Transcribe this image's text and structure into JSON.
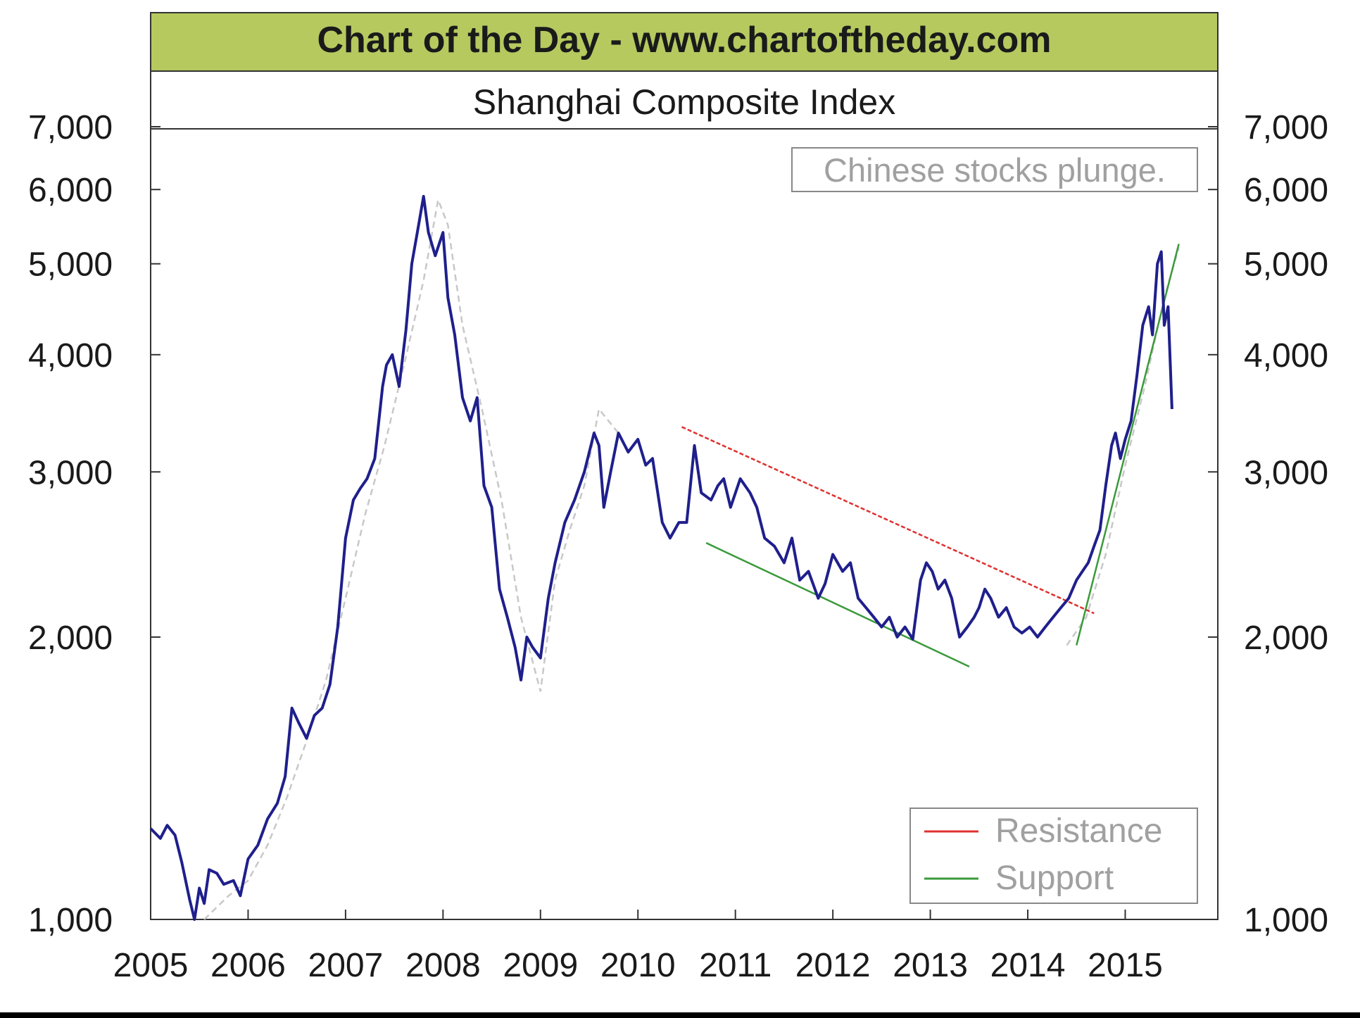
{
  "header": {
    "banner": "Chart of the Day - www.chartoftheday.com",
    "title": "Shanghai Composite Index",
    "annotation": "Chinese stocks plunge.",
    "banner_color": "#b5c95f"
  },
  "chart_data": {
    "type": "line",
    "title": "Shanghai Composite Index",
    "xlabel": "",
    "ylabel": "",
    "y_scale": "log",
    "xlim": [
      2005.0,
      2015.95
    ],
    "ylim": [
      1000,
      7000
    ],
    "x_ticks": [
      2005,
      2006,
      2007,
      2008,
      2009,
      2010,
      2011,
      2012,
      2013,
      2014,
      2015
    ],
    "x_tick_labels": [
      "2005",
      "2006",
      "2007",
      "2008",
      "2009",
      "2010",
      "2011",
      "2012",
      "2013",
      "2014",
      "2015"
    ],
    "y_ticks": [
      1000,
      2000,
      3000,
      4000,
      5000,
      6000,
      7000
    ],
    "y_tick_labels": [
      "1,000",
      "2,000",
      "3,000",
      "4,000",
      "5,000",
      "6,000",
      "7,000"
    ],
    "legend_position": "bottom-right",
    "colors": {
      "index": "#1f1f8c",
      "moving_average": "#c8c8c8",
      "resistance": "#e03030",
      "support": "#3a9a3a"
    },
    "series": [
      {
        "role": "index",
        "x": [
          2005.0,
          2005.1,
          2005.17,
          2005.25,
          2005.32,
          2005.4,
          2005.45,
          2005.5,
          2005.55,
          2005.6,
          2005.68,
          2005.75,
          2005.85,
          2005.92,
          2006.0,
          2006.1,
          2006.2,
          2006.3,
          2006.38,
          2006.45,
          2006.52,
          2006.6,
          2006.68,
          2006.76,
          2006.84,
          2006.92,
          2007.0,
          2007.08,
          2007.15,
          2007.22,
          2007.3,
          2007.38,
          2007.42,
          2007.48,
          2007.55,
          2007.62,
          2007.68,
          2007.75,
          2007.8,
          2007.85,
          2007.92,
          2008.0,
          2008.05,
          2008.12,
          2008.2,
          2008.28,
          2008.35,
          2008.42,
          2008.5,
          2008.58,
          2008.66,
          2008.74,
          2008.8,
          2008.86,
          2008.92,
          2009.0,
          2009.08,
          2009.15,
          2009.25,
          2009.35,
          2009.45,
          2009.55,
          2009.6,
          2009.65,
          2009.72,
          2009.8,
          2009.9,
          2010.0,
          2010.08,
          2010.15,
          2010.25,
          2010.33,
          2010.42,
          2010.5,
          2010.58,
          2010.65,
          2010.75,
          2010.82,
          2010.88,
          2010.95,
          2011.05,
          2011.15,
          2011.22,
          2011.3,
          2011.4,
          2011.5,
          2011.58,
          2011.66,
          2011.75,
          2011.85,
          2011.92,
          2012.0,
          2012.1,
          2012.18,
          2012.26,
          2012.34,
          2012.42,
          2012.5,
          2012.58,
          2012.66,
          2012.74,
          2012.82,
          2012.9,
          2012.96,
          2013.02,
          2013.08,
          2013.15,
          2013.22,
          2013.3,
          2013.38,
          2013.45,
          2013.5,
          2013.56,
          2013.62,
          2013.7,
          2013.78,
          2013.86,
          2013.94,
          2014.02,
          2014.1,
          2014.18,
          2014.26,
          2014.34,
          2014.42,
          2014.5,
          2014.56,
          2014.62,
          2014.68,
          2014.74,
          2014.8,
          2014.86,
          2014.9,
          2014.95,
          2015.0,
          2015.06,
          2015.12,
          2015.18,
          2015.24,
          2015.28,
          2015.33,
          2015.37,
          2015.4,
          2015.44,
          2015.48
        ],
        "y": [
          1250,
          1220,
          1260,
          1230,
          1150,
          1050,
          1000,
          1080,
          1040,
          1130,
          1120,
          1090,
          1100,
          1060,
          1160,
          1200,
          1280,
          1330,
          1420,
          1680,
          1620,
          1560,
          1650,
          1680,
          1780,
          2050,
          2550,
          2800,
          2880,
          2950,
          3100,
          3700,
          3900,
          4000,
          3700,
          4250,
          5000,
          5500,
          5900,
          5400,
          5100,
          5400,
          4600,
          4200,
          3600,
          3400,
          3600,
          2900,
          2750,
          2250,
          2100,
          1950,
          1800,
          2000,
          1950,
          1900,
          2200,
          2400,
          2650,
          2800,
          3000,
          3300,
          3200,
          2750,
          3000,
          3300,
          3150,
          3250,
          3050,
          3100,
          2650,
          2550,
          2650,
          2650,
          3200,
          2850,
          2800,
          2900,
          2950,
          2750,
          2950,
          2850,
          2750,
          2550,
          2500,
          2400,
          2550,
          2300,
          2350,
          2200,
          2280,
          2450,
          2350,
          2400,
          2200,
          2150,
          2100,
          2050,
          2100,
          2000,
          2050,
          1990,
          2300,
          2400,
          2350,
          2250,
          2300,
          2200,
          2000,
          2050,
          2100,
          2150,
          2250,
          2200,
          2100,
          2150,
          2050,
          2020,
          2050,
          2000,
          2050,
          2100,
          2150,
          2200,
          2300,
          2350,
          2400,
          2500,
          2600,
          2900,
          3200,
          3300,
          3100,
          3250,
          3400,
          3800,
          4300,
          4500,
          4200,
          5000,
          5150,
          4300,
          4500,
          3500
        ]
      },
      {
        "role": "moving_average",
        "x": [
          2005.55,
          2005.8,
          2006.0,
          2006.2,
          2006.4,
          2006.6,
          2006.8,
          2007.0,
          2007.2,
          2007.4,
          2007.6,
          2007.8,
          2007.95,
          2008.05,
          2008.2,
          2008.4,
          2008.6,
          2008.8,
          2009.0,
          2009.15,
          2009.3,
          2009.45,
          2009.6,
          2009.8
        ],
        "y": [
          1000,
          1060,
          1100,
          1200,
          1350,
          1550,
          1800,
          2200,
          2700,
          3200,
          3900,
          4800,
          5850,
          5500,
          4300,
          3500,
          2800,
          2100,
          1750,
          2300,
          2600,
          2900,
          3500,
          3300
        ]
      },
      {
        "role": "moving_average",
        "x": [
          2014.4,
          2014.6,
          2014.8,
          2015.0,
          2015.2,
          2015.4,
          2015.55
        ],
        "y": [
          1960,
          2100,
          2450,
          3050,
          3700,
          4600,
          5200
        ]
      }
    ],
    "trendlines": [
      {
        "name": "Resistance",
        "x": [
          2010.45,
          2014.68
        ],
        "y": [
          3350,
          2120
        ]
      },
      {
        "name": "Support",
        "x": [
          2010.7,
          2013.4
        ],
        "y": [
          2520,
          1860
        ]
      },
      {
        "name": "Support",
        "x": [
          2014.5,
          2015.55
        ],
        "y": [
          1960,
          5250
        ]
      }
    ],
    "legend": [
      {
        "label": "Resistance",
        "color": "#e03030"
      },
      {
        "label": "Support",
        "color": "#3a9a3a"
      }
    ]
  }
}
